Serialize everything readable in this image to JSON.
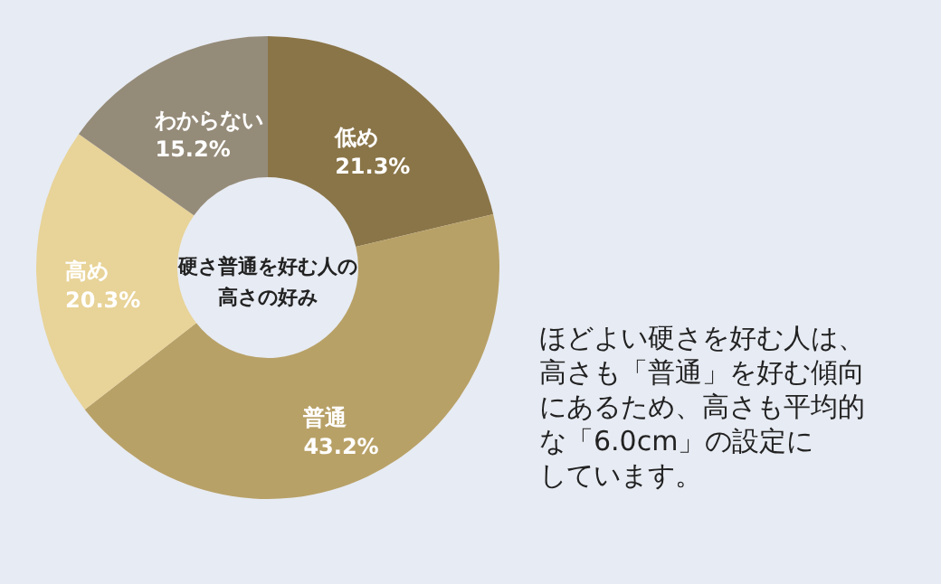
{
  "chart_data": {
    "type": "donut",
    "title": "硬さ普通を好む人の高さの好み",
    "categories": [
      "低め",
      "普通",
      "高め",
      "わからない"
    ],
    "values": [
      21.3,
      43.2,
      20.3,
      15.2
    ],
    "value_labels": [
      "21.3%",
      "43.2%",
      "20.3%",
      "15.2%"
    ],
    "colors": [
      "#8a7548",
      "#b8a167",
      "#e8d398",
      "#958b79"
    ],
    "annotations": [
      "ほどよい硬さを好む人は、高さも「普通」を好む傾向にあるため、高さも平均的な「6.0cm」の設定にしています。"
    ]
  }
}
